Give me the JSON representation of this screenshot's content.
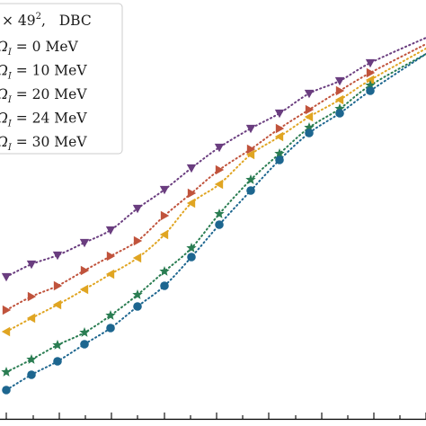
{
  "chart_data": {
    "type": "scatter",
    "title": "",
    "xlabel": "",
    "ylabel": "",
    "grid": false,
    "legend_placement": "top-left",
    "xlim": [
      0,
      474
    ],
    "ylim": [
      0,
      474
    ],
    "legend": {
      "header_parts": [
        "× 49",
        "2",
        ",   DBC"
      ],
      "entries": [
        {
          "prefix": "Ω",
          "sub": "I",
          "value": " = 0 MeV"
        },
        {
          "prefix": "Ω",
          "sub": "I",
          "value": " = 10 MeV"
        },
        {
          "prefix": "Ω",
          "sub": "I",
          "value": " = 20 MeV"
        },
        {
          "prefix": "Ω",
          "sub": "I",
          "value": " = 24 MeV"
        },
        {
          "prefix": "Ω",
          "sub": "I",
          "value": " = 30 MeV"
        }
      ]
    },
    "series": [
      {
        "color": "#6a3d7f",
        "marker": "triangle-down",
        "points": [
          [
            7,
            166
          ],
          [
            35,
            180
          ],
          [
            64,
            190
          ],
          [
            94,
            204
          ],
          [
            123,
            218
          ],
          [
            153,
            242
          ],
          [
            183,
            263
          ],
          [
            213,
            287
          ],
          [
            244,
            310
          ],
          [
            279,
            331
          ],
          [
            311,
            348
          ],
          [
            344,
            370
          ],
          [
            378,
            384
          ],
          [
            412,
            404
          ]
        ],
        "curve_end": [
          474,
          432
        ]
      },
      {
        "color": "#c0533c",
        "marker": "triangle-right",
        "points": [
          [
            7,
            129
          ],
          [
            35,
            144
          ],
          [
            64,
            156
          ],
          [
            94,
            173
          ],
          [
            123,
            189
          ],
          [
            153,
            206
          ],
          [
            183,
            234
          ],
          [
            213,
            259
          ],
          [
            244,
            285
          ],
          [
            279,
            308
          ],
          [
            311,
            331
          ],
          [
            344,
            352
          ],
          [
            378,
            373
          ],
          [
            412,
            393
          ]
        ],
        "curve_end": [
          474,
          425
        ]
      },
      {
        "color": "#e0a522",
        "marker": "triangle-left",
        "points": [
          [
            7,
            105
          ],
          [
            35,
            120
          ],
          [
            64,
            135
          ],
          [
            94,
            152
          ],
          [
            123,
            169
          ],
          [
            153,
            187
          ],
          [
            183,
            213
          ],
          [
            213,
            248
          ],
          [
            244,
            269
          ],
          [
            279,
            302
          ],
          [
            311,
            322
          ],
          [
            344,
            344
          ],
          [
            378,
            363
          ],
          [
            412,
            385
          ]
        ],
        "curve_end": [
          474,
          420
        ]
      },
      {
        "color": "#2a7d52",
        "marker": "star",
        "points": [
          [
            7,
            60
          ],
          [
            35,
            74
          ],
          [
            64,
            90
          ],
          [
            94,
            104
          ],
          [
            123,
            123
          ],
          [
            153,
            146
          ],
          [
            183,
            172
          ],
          [
            213,
            198
          ],
          [
            244,
            236
          ],
          [
            279,
            274
          ],
          [
            311,
            303
          ],
          [
            344,
            332
          ],
          [
            378,
            353
          ],
          [
            412,
            379
          ]
        ],
        "curve_end": [
          474,
          414
        ]
      },
      {
        "color": "#1d668f",
        "marker": "circle",
        "points": [
          [
            7,
            40
          ],
          [
            35,
            57
          ],
          [
            64,
            72
          ],
          [
            94,
            91
          ],
          [
            123,
            109
          ],
          [
            153,
            133
          ],
          [
            183,
            156
          ],
          [
            213,
            188
          ],
          [
            244,
            224
          ],
          [
            279,
            262
          ],
          [
            311,
            296
          ],
          [
            344,
            326
          ],
          [
            378,
            348
          ],
          [
            412,
            373
          ]
        ],
        "curve_end": [
          474,
          414
        ]
      }
    ],
    "x_ticks": [
      7,
      37,
      66,
      95,
      124,
      153,
      183,
      212,
      241,
      270,
      299,
      329,
      358,
      387,
      416,
      445,
      474
    ],
    "y_ticks": [
      7,
      47,
      87,
      127,
      167,
      207,
      247,
      287,
      327,
      367,
      407,
      447
    ]
  }
}
